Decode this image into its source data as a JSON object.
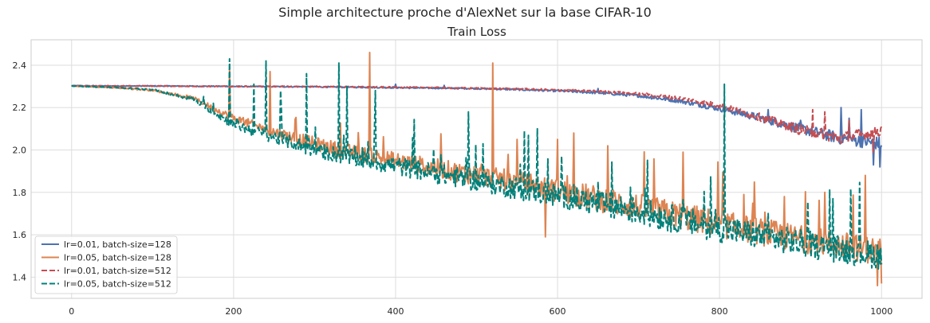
{
  "chart_data": {
    "type": "line",
    "suptitle": "Simple architecture proche d'AlexNet sur la base CIFAR-10",
    "title": "Train Loss",
    "xlabel": "",
    "ylabel": "",
    "xlim": [
      -50,
      1050
    ],
    "ylim": [
      1.3,
      2.52
    ],
    "xticks": [
      0,
      200,
      400,
      600,
      800,
      1000
    ],
    "yticks": [
      1.4,
      1.6,
      1.8,
      2.0,
      2.2,
      2.4
    ],
    "xtick_labels": [
      "0",
      "200",
      "400",
      "600",
      "800",
      "1000"
    ],
    "ytick_labels": [
      "1.4",
      "1.6",
      "1.8",
      "2.0",
      "2.2",
      "2.4"
    ],
    "grid": true,
    "legend_position": "lower-left",
    "series": [
      {
        "name": "lr=0.01, batch-size=128",
        "color": "#4c72b0",
        "style": "solid",
        "x": [
          0,
          50,
          100,
          150,
          200,
          250,
          300,
          350,
          400,
          450,
          500,
          550,
          600,
          650,
          700,
          750,
          800,
          850,
          900,
          950,
          1000
        ],
        "values": [
          2.303,
          2.302,
          2.302,
          2.301,
          2.3,
          2.299,
          2.298,
          2.296,
          2.294,
          2.292,
          2.29,
          2.285,
          2.279,
          2.27,
          2.256,
          2.232,
          2.196,
          2.152,
          2.1,
          2.055,
          2.03
        ],
        "spikes": [
          [
            400,
            2.31
          ],
          [
            460,
            2.305
          ],
          [
            650,
            2.29
          ],
          [
            860,
            2.19
          ],
          [
            900,
            2.14
          ],
          [
            950,
            2.2
          ],
          [
            960,
            2.15
          ],
          [
            975,
            2.19
          ],
          [
            990,
            1.93
          ],
          [
            998,
            1.92
          ]
        ]
      },
      {
        "name": "lr=0.05, batch-size=128",
        "color": "#dd8452",
        "style": "solid",
        "x": [
          0,
          50,
          100,
          150,
          200,
          250,
          300,
          350,
          400,
          450,
          500,
          550,
          600,
          650,
          700,
          750,
          800,
          850,
          900,
          950,
          1000
        ],
        "values": [
          2.302,
          2.295,
          2.282,
          2.245,
          2.15,
          2.085,
          2.03,
          1.985,
          1.95,
          1.915,
          1.88,
          1.85,
          1.81,
          1.77,
          1.73,
          1.69,
          1.65,
          1.615,
          1.58,
          1.55,
          1.52
        ],
        "spikes": [
          [
            195,
            2.38
          ],
          [
            245,
            2.37
          ],
          [
            368,
            2.46
          ],
          [
            520,
            2.41
          ],
          [
            550,
            2.05
          ],
          [
            585,
            1.59
          ],
          [
            600,
            2.05
          ],
          [
            620,
            2.08
          ],
          [
            755,
            1.99
          ],
          [
            830,
            1.79
          ],
          [
            880,
            1.78
          ],
          [
            930,
            1.8
          ],
          [
            980,
            1.88
          ],
          [
            995,
            1.36
          ],
          [
            1000,
            1.37
          ]
        ]
      },
      {
        "name": "lr=0.01, batch-size=512",
        "color": "#c44e52",
        "style": "dashed",
        "x": [
          0,
          50,
          100,
          150,
          200,
          250,
          300,
          350,
          400,
          450,
          500,
          550,
          600,
          650,
          700,
          750,
          800,
          850,
          900,
          950,
          1000
        ],
        "values": [
          2.303,
          2.302,
          2.302,
          2.301,
          2.3,
          2.3,
          2.299,
          2.298,
          2.296,
          2.294,
          2.291,
          2.288,
          2.283,
          2.277,
          2.265,
          2.245,
          2.21,
          2.155,
          2.095,
          2.055,
          2.09
        ],
        "spikes": [
          [
            915,
            2.19
          ],
          [
            930,
            2.18
          ],
          [
            960,
            2.14
          ],
          [
            990,
            1.99
          ],
          [
            1000,
            2.11
          ]
        ]
      },
      {
        "name": "lr=0.05, batch-size=512",
        "color": "#00807a",
        "style": "dashed",
        "x": [
          0,
          50,
          100,
          150,
          200,
          250,
          300,
          350,
          400,
          450,
          500,
          550,
          600,
          650,
          700,
          750,
          800,
          850,
          900,
          950,
          1000
        ],
        "values": [
          2.302,
          2.296,
          2.285,
          2.24,
          2.12,
          2.06,
          2.0,
          1.96,
          1.925,
          1.89,
          1.855,
          1.82,
          1.785,
          1.745,
          1.71,
          1.67,
          1.63,
          1.595,
          1.56,
          1.53,
          1.5
        ],
        "spikes": [
          [
            195,
            2.43
          ],
          [
            225,
            2.31
          ],
          [
            240,
            2.42
          ],
          [
            258,
            2.28
          ],
          [
            290,
            2.36
          ],
          [
            330,
            2.41
          ],
          [
            340,
            2.3
          ],
          [
            375,
            2.28
          ],
          [
            490,
            2.18
          ],
          [
            575,
            2.1
          ],
          [
            650,
            1.85
          ],
          [
            806,
            2.31
          ],
          [
            860,
            1.7
          ],
          [
            940,
            1.77
          ],
          [
            1000,
            1.46
          ]
        ]
      }
    ]
  }
}
